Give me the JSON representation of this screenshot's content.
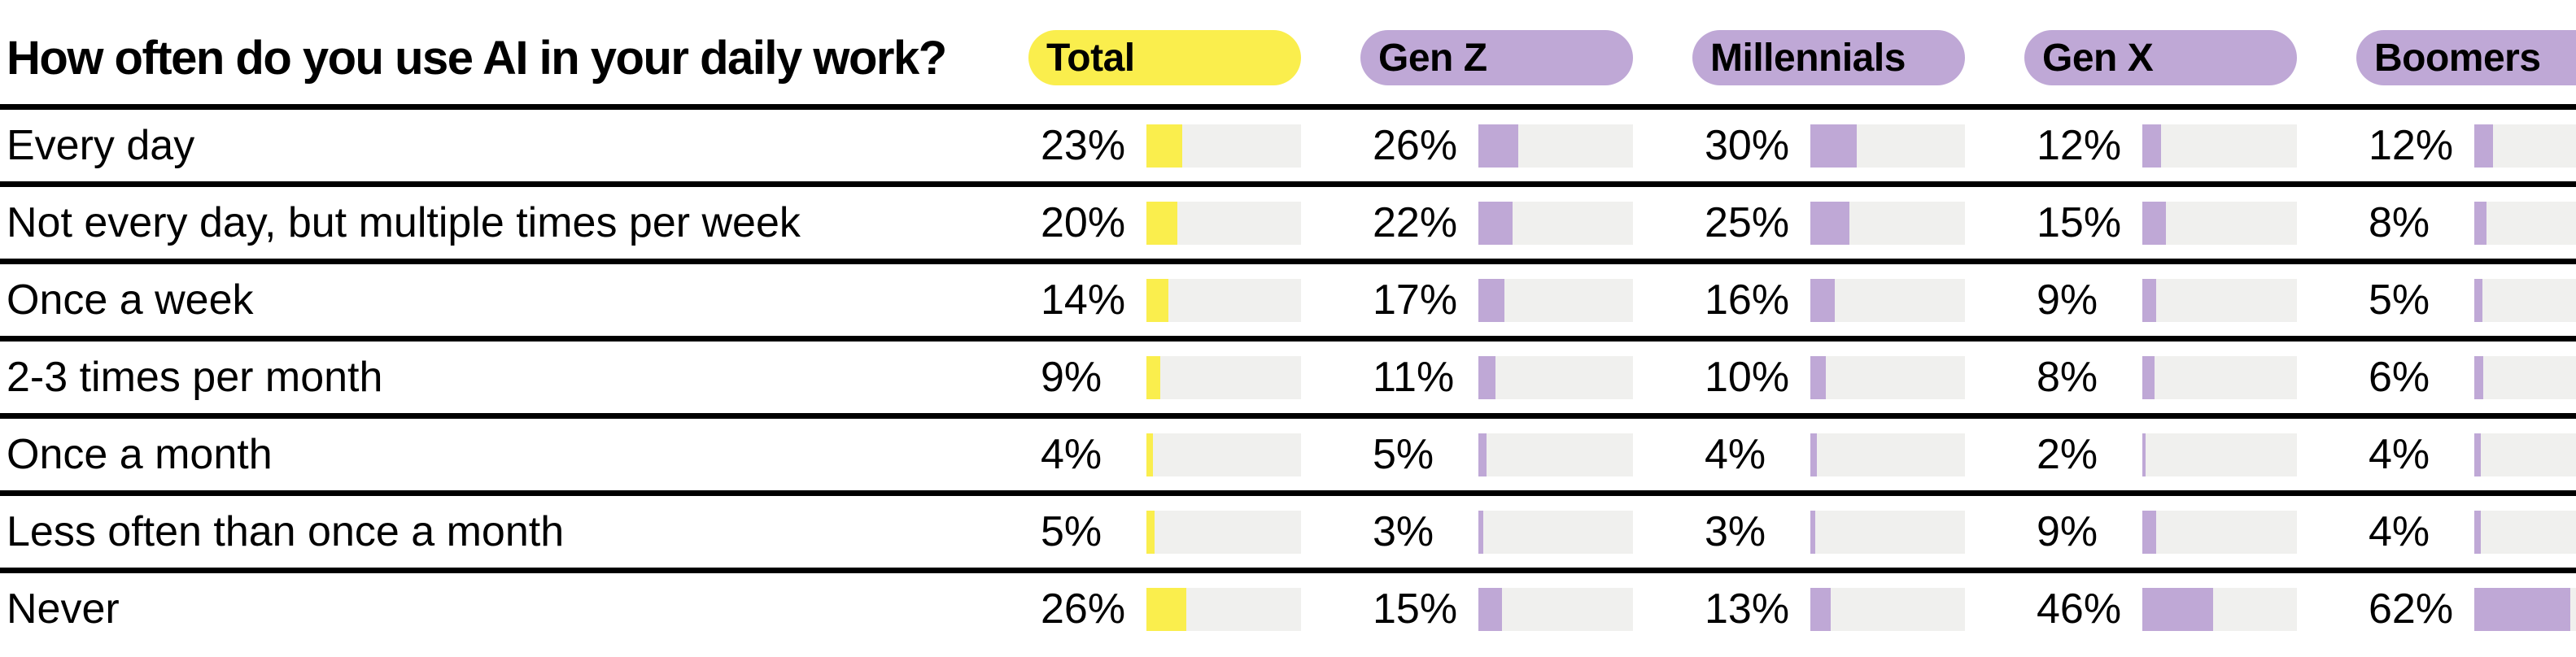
{
  "title": "How often do you use AI in your daily work?",
  "colors": {
    "total_accent": "#FAEE4D",
    "generation_accent": "#BFA8D6",
    "bar_track": "#F0F0EE",
    "separator": "#000000",
    "text": "#000000",
    "background": "#FFFFFF"
  },
  "table": {
    "columns": [
      {
        "label": "Total",
        "color": "#FAEE4D"
      },
      {
        "label": "Gen Z",
        "color": "#BFA8D6"
      },
      {
        "label": "Millennials",
        "color": "#BFA8D6"
      },
      {
        "label": "Gen X",
        "color": "#BFA8D6"
      },
      {
        "label": "Boomers",
        "color": "#BFA8D6"
      }
    ],
    "rows": [
      {
        "label": "Every day",
        "values": [
          "23%",
          "26%",
          "30%",
          "12%",
          "12%"
        ]
      },
      {
        "label": "Not every day, but multiple times per week",
        "values": [
          "20%",
          "22%",
          "25%",
          "15%",
          "8%"
        ]
      },
      {
        "label": "Once a week",
        "values": [
          "14%",
          "17%",
          "16%",
          "9%",
          "5%"
        ]
      },
      {
        "label": "2-3 times per month",
        "values": [
          "9%",
          "11%",
          "10%",
          "8%",
          "6%"
        ]
      },
      {
        "label": "Once a month",
        "values": [
          "4%",
          "5%",
          "4%",
          "2%",
          "4%"
        ]
      },
      {
        "label": "Less often than once a month",
        "values": [
          "5%",
          "3%",
          "3%",
          "9%",
          "4%"
        ]
      },
      {
        "label": "Never",
        "values": [
          "26%",
          "15%",
          "13%",
          "46%",
          "62%"
        ]
      }
    ]
  },
  "chart_data": {
    "type": "bar",
    "title": "How often do you use AI in your daily work?",
    "categories": [
      "Every day",
      "Not every day, but multiple times per week",
      "Once a week",
      "2-3 times per month",
      "Once a month",
      "Less often than once a month",
      "Never"
    ],
    "series": [
      {
        "name": "Total",
        "values": [
          23,
          20,
          14,
          9,
          4,
          5,
          26
        ]
      },
      {
        "name": "Gen Z",
        "values": [
          26,
          22,
          17,
          11,
          5,
          3,
          15
        ]
      },
      {
        "name": "Millennials",
        "values": [
          30,
          25,
          16,
          10,
          4,
          3,
          13
        ]
      },
      {
        "name": "Gen X",
        "values": [
          12,
          15,
          9,
          8,
          2,
          9,
          46
        ]
      },
      {
        "name": "Boomers",
        "values": [
          12,
          8,
          5,
          6,
          4,
          4,
          62
        ]
      }
    ],
    "value_format": "percent",
    "xlim": [
      0,
      100
    ],
    "orientation": "horizontal",
    "grid": false,
    "legend_position": "top"
  }
}
